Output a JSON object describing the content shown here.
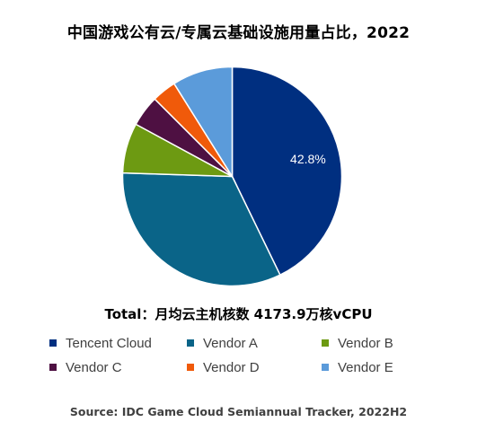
{
  "chart_data": {
    "type": "pie",
    "title": "中国游戏公有云/专属云基础设施用量占比，2022",
    "subtitle": "Total：月均云主机核数 4173.9万核vCPU",
    "source": "Source: IDC Game Cloud Semiannual Tracker, 2022H2",
    "legend_placement": "bottom",
    "slices": [
      {
        "label": "Tencent Cloud",
        "value": 42.8,
        "color": "#002F80",
        "data_label": "42.8%"
      },
      {
        "label": "Vendor A",
        "value": 32.7,
        "color": "#0A6488",
        "data_label": ""
      },
      {
        "label": "Vendor B",
        "value": 7.4,
        "color": "#6D9A12",
        "data_label": ""
      },
      {
        "label": "Vendor C",
        "value": 4.6,
        "color": "#4E1042",
        "data_label": ""
      },
      {
        "label": "Vendor D",
        "value": 3.6,
        "color": "#F05A0A",
        "data_label": ""
      },
      {
        "label": "Vendor E",
        "value": 8.9,
        "color": "#5B9BDA",
        "data_label": ""
      }
    ]
  }
}
